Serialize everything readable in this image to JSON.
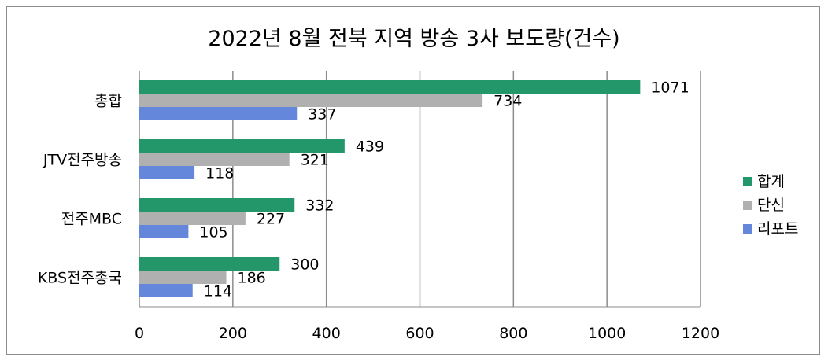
{
  "chart_data": {
    "type": "bar",
    "orientation": "horizontal",
    "title": "2022년 8월 전북 지역 방송 3사 보도량(건수)",
    "categories": [
      "총합",
      "JTV전주방송",
      "전주MBC",
      "KBS전주총국"
    ],
    "series": [
      {
        "name": "합계",
        "color": "#23976a",
        "values": [
          1071,
          439,
          332,
          300
        ]
      },
      {
        "name": "단신",
        "color": "#b0b0b0",
        "values": [
          734,
          321,
          227,
          186
        ]
      },
      {
        "name": "리포트",
        "color": "#6487db",
        "values": [
          337,
          118,
          105,
          114
        ]
      }
    ],
    "xlim": [
      0,
      1200
    ],
    "xticks": [
      0,
      200,
      400,
      600,
      800,
      1000,
      1200
    ],
    "grid": true,
    "legend": "right"
  }
}
